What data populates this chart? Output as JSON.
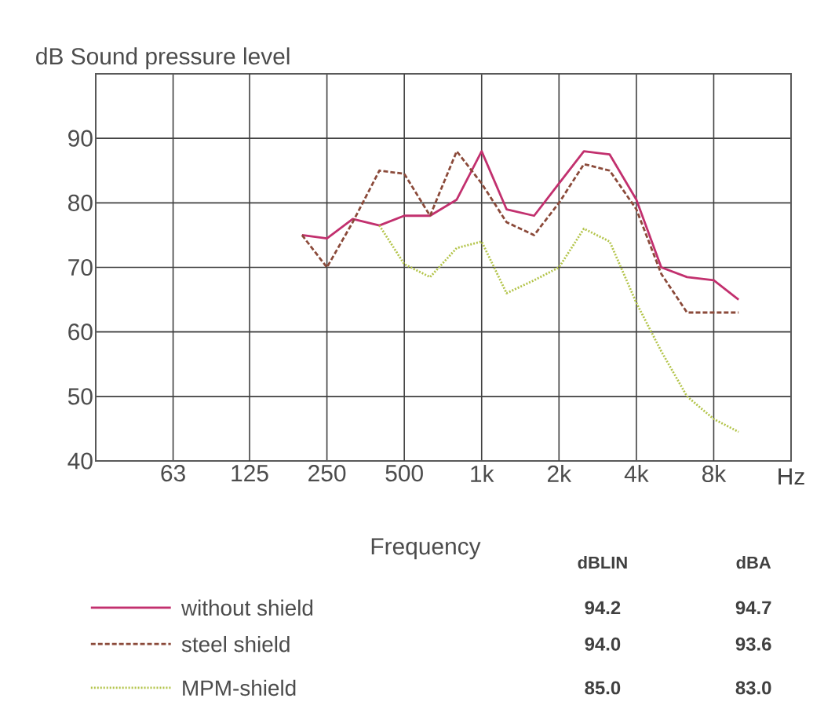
{
  "chart_data": {
    "type": "line",
    "ylabel": "dB  Sound pressure level",
    "xlabel": "Frequency",
    "annotations": [
      "Hz",
      "dBLIN",
      "dBA",
      "94.2",
      "94.7",
      "94.0",
      "93.6",
      "85.0",
      "83.0"
    ],
    "x": [
      200,
      250,
      315,
      400,
      500,
      630,
      800,
      1000,
      1250,
      1600,
      2000,
      2500,
      3150,
      4000,
      5000,
      6300,
      8000,
      10000
    ],
    "series": [
      {
        "name": "without shield",
        "color": "#c2306e",
        "line_style": "solid",
        "values": [
          75,
          74.5,
          77.5,
          76.5,
          78,
          78,
          80.5,
          88,
          79,
          78,
          83,
          88,
          87.5,
          80.5,
          70,
          68.5,
          68,
          65
        ]
      },
      {
        "name": "steel shield",
        "color": "#8b4a3a",
        "line_style": "dashed",
        "values": [
          75,
          70,
          77,
          85,
          84.5,
          78,
          88,
          83,
          77,
          75,
          80,
          86,
          85,
          79,
          69,
          63,
          63,
          63
        ]
      },
      {
        "name": "MPM-shield",
        "color": "#b3c44a",
        "line_style": "dotted",
        "values": [
          null,
          null,
          null,
          76.5,
          70.5,
          68.5,
          73,
          74,
          66,
          68,
          70,
          76,
          74,
          64.5,
          57,
          50,
          46.5,
          44.5
        ]
      }
    ],
    "xlim": [
      31.5,
      16000
    ],
    "ylim": [
      40,
      100
    ],
    "log": "x",
    "xticks": [
      63,
      125,
      250,
      500,
      {
        "value": 1000,
        "label": "1k"
      },
      {
        "value": 2000,
        "label": "2k"
      },
      {
        "value": 4000,
        "label": "4k"
      },
      {
        "value": 8000,
        "label": "8k"
      }
    ],
    "yticks": [
      40,
      50,
      60,
      70,
      80,
      90
    ],
    "grid": true,
    "legend": "bottom"
  }
}
